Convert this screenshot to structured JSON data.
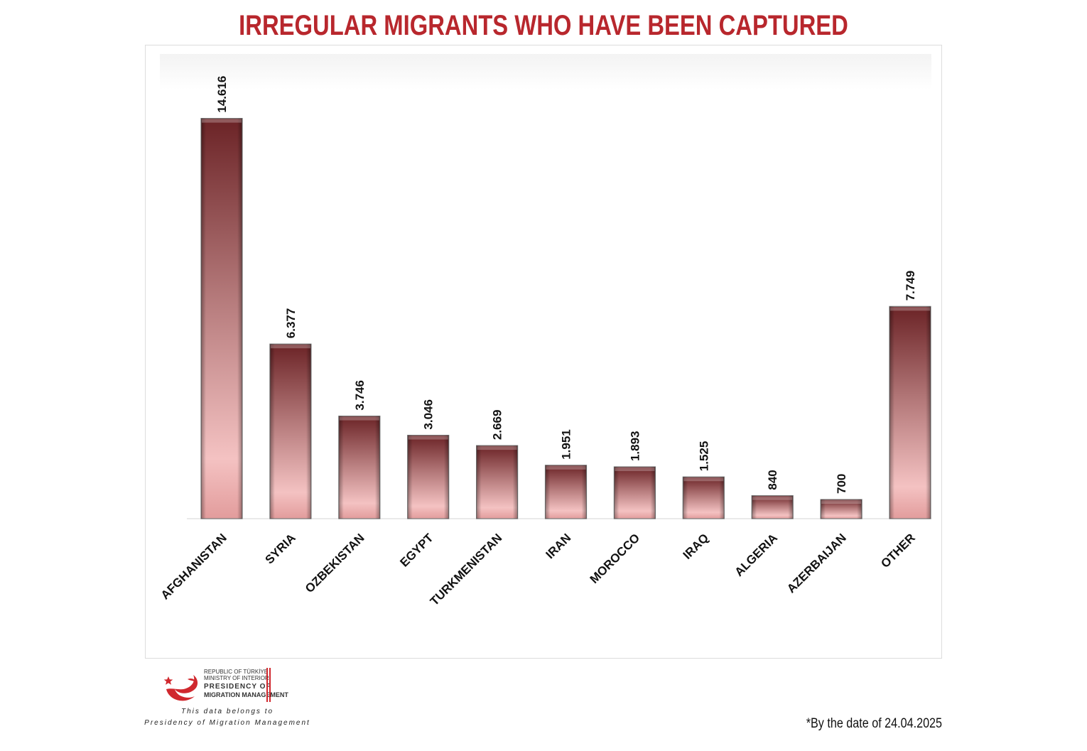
{
  "title": "IRREGULAR MIGRANTS WHO HAVE BEEN CAPTURED",
  "footnote": "*By the date of 24.04.2025",
  "logo": {
    "line1": "REPUBLIC OF TÜRKİYE",
    "line2": "MINISTRY OF INTERIOR",
    "line3": "PRESIDENCY OF",
    "line4": "MIGRATION MANAGEMENT",
    "note_line1": "This data belongs to",
    "note_line2": "Presidency of Migration Management",
    "icon": "crescent-star-emblem"
  },
  "colors": {
    "title": "#b8272d",
    "bar_dark": "#6b2326",
    "bar_light": "#f4c2c2",
    "logo_red": "#d0282e"
  },
  "chart_data": {
    "type": "bar",
    "title": "IRREGULAR MIGRANTS WHO HAVE BEEN CAPTURED",
    "categories": [
      "AFGHANISTAN",
      "SYRIA",
      "OZBEKISTAN",
      "EGYPT",
      "TURKMENISTAN",
      "IRAN",
      "MOROCCO",
      "IRAQ",
      "ALGERIA",
      "AZERBAIJAN",
      "OTHER"
    ],
    "values": [
      14616,
      6377,
      3746,
      3046,
      2669,
      1951,
      1893,
      1525,
      840,
      700,
      7749
    ],
    "data_labels": [
      "14.616",
      "6.377",
      "3.746",
      "3.046",
      "2.669",
      "1.951",
      "1.893",
      "1.525",
      "840",
      "700",
      "7.749"
    ],
    "xlabel": "",
    "ylabel": "",
    "ylim": [
      0,
      16500
    ],
    "grid": false,
    "legend": "none"
  }
}
